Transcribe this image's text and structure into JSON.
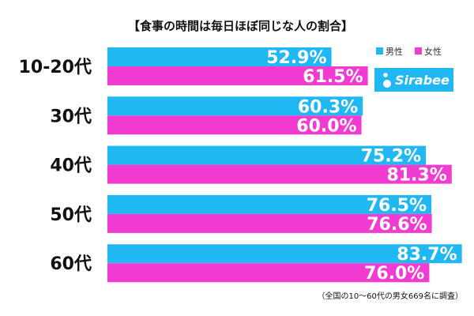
{
  "chart_data": {
    "type": "bar",
    "orientation": "horizontal",
    "title": "【食事の時間は毎日ほぼ同じな人の割合】",
    "categories": [
      "10-20代",
      "30代",
      "40代",
      "50代",
      "60代"
    ],
    "series": [
      {
        "name": "男性",
        "color": "#1fb8f2",
        "values": [
          52.9,
          60.3,
          75.2,
          76.5,
          83.7
        ]
      },
      {
        "name": "女性",
        "color": "#f23cd1",
        "values": [
          61.5,
          60.0,
          81.3,
          76.6,
          76.0
        ]
      }
    ],
    "value_suffix": "%",
    "xlim": [
      0,
      100
    ],
    "grid": false,
    "legend_position": "top-right",
    "note": "（全国の10〜60代の男女669名に調査）",
    "logo_text": "Sirabee"
  }
}
